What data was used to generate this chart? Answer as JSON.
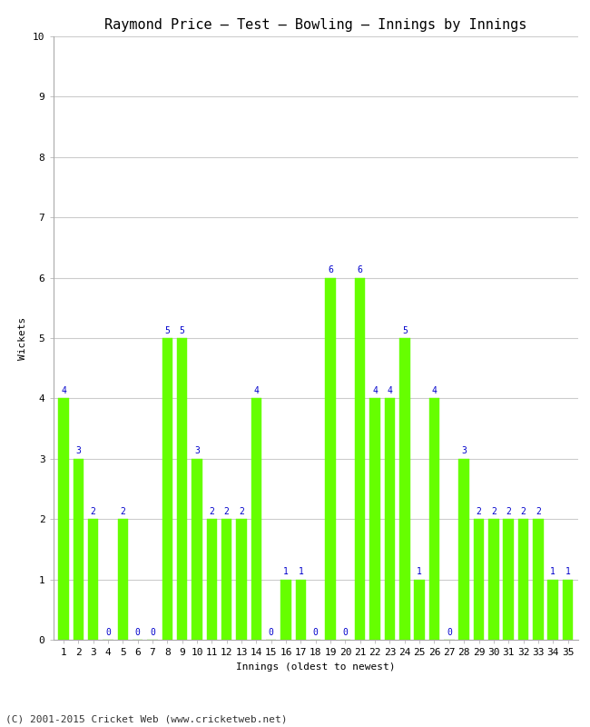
{
  "title": "Raymond Price – Test – Bowling – Innings by Innings",
  "xlabel": "Innings (oldest to newest)",
  "ylabel": "Wickets",
  "bar_color": "#66FF00",
  "label_color": "#0000CC",
  "background_color": "#ffffff",
  "grid_color": "#cccccc",
  "ylim": [
    0,
    10
  ],
  "yticks": [
    0,
    1,
    2,
    3,
    4,
    5,
    6,
    7,
    8,
    9,
    10
  ],
  "innings": [
    1,
    2,
    3,
    4,
    5,
    6,
    7,
    8,
    9,
    10,
    11,
    12,
    13,
    14,
    15,
    16,
    17,
    18,
    19,
    20,
    21,
    22,
    23,
    24,
    25,
    26,
    27,
    28,
    29,
    30,
    31,
    32,
    33,
    34,
    35
  ],
  "wickets": [
    4,
    3,
    2,
    0,
    2,
    0,
    0,
    5,
    5,
    3,
    2,
    2,
    2,
    4,
    0,
    1,
    1,
    0,
    6,
    0,
    6,
    4,
    4,
    5,
    1,
    4,
    0,
    3,
    2,
    2,
    2,
    2,
    2,
    1,
    1
  ],
  "footnote": "(C) 2001-2015 Cricket Web (www.cricketweb.net)",
  "title_fontsize": 11,
  "axis_fontsize": 8,
  "label_fontsize": 7,
  "footnote_fontsize": 8
}
